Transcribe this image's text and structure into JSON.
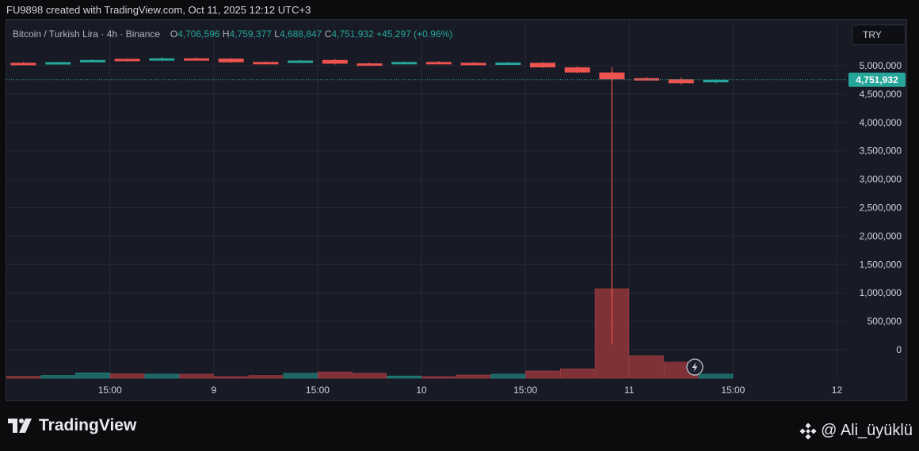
{
  "header": {
    "attribution": "FU9898 created with TradingView.com, Oct 11, 2025 12:12 UTC+3"
  },
  "legend": {
    "symbol": "Bitcoin / Turkish Lira · 4h · Binance",
    "o_label": "O",
    "o_value": "4,706,596",
    "h_label": "H",
    "h_value": "4,759,377",
    "l_label": "L",
    "l_value": "4,688,847",
    "c_label": "C",
    "c_value": "4,751,932",
    "change": "+45,297 (+0.96%)"
  },
  "currency_button": "TRY",
  "footer": {
    "logo_text": "TradingView",
    "credit": "@ Ali_üyüklü"
  },
  "colors": {
    "up": "#26a69a",
    "down": "#ef5350",
    "background": "#181a25",
    "grid": "#262834",
    "axis_text": "#d1d4dc"
  },
  "chart_data": {
    "type": "candlestick",
    "symbol": "Bitcoin / Turkish Lira",
    "interval": "4h",
    "exchange": "Binance",
    "currency": "TRY",
    "last_price": 4751932,
    "last_price_label": "4,751,932",
    "y_ticks": [
      {
        "value": 5000000,
        "label": "5,000,000"
      },
      {
        "value": 4500000,
        "label": "4,500,000"
      },
      {
        "value": 4000000,
        "label": "4,000,000"
      },
      {
        "value": 3500000,
        "label": "3,500,000"
      },
      {
        "value": 3000000,
        "label": "3,000,000"
      },
      {
        "value": 2500000,
        "label": "2,500,000"
      },
      {
        "value": 2000000,
        "label": "2,000,000"
      },
      {
        "value": 1500000,
        "label": "1,500,000"
      },
      {
        "value": 1000000,
        "label": "1,000,000"
      },
      {
        "value": 500000,
        "label": "500,000"
      },
      {
        "value": 0,
        "label": "0"
      }
    ],
    "x_ticks": [
      {
        "index": 2.5,
        "label": "15:00"
      },
      {
        "index": 5.5,
        "label": "9"
      },
      {
        "index": 8.5,
        "label": "15:00"
      },
      {
        "index": 11.5,
        "label": "10"
      },
      {
        "index": 14.5,
        "label": "15:00"
      },
      {
        "index": 17.5,
        "label": "11"
      },
      {
        "index": 20.5,
        "label": "15:00"
      },
      {
        "index": 23.5,
        "label": "12"
      }
    ],
    "candles": [
      {
        "o": 5050000,
        "h": 5065000,
        "l": 5040000,
        "c": 5045000
      },
      {
        "o": 5055000,
        "h": 5070000,
        "l": 5050000,
        "c": 5062000
      },
      {
        "o": 5065000,
        "h": 5110000,
        "l": 5060000,
        "c": 5100000
      },
      {
        "o": 5120000,
        "h": 5130000,
        "l": 5080000,
        "c": 5090000
      },
      {
        "o": 5100000,
        "h": 5150000,
        "l": 5090000,
        "c": 5130000
      },
      {
        "o": 5130000,
        "h": 5145000,
        "l": 5115000,
        "c": 5120000
      },
      {
        "o": 5125000,
        "h": 5130000,
        "l": 5050000,
        "c": 5060000
      },
      {
        "o": 5065000,
        "h": 5075000,
        "l": 5055000,
        "c": 5060000
      },
      {
        "o": 5065000,
        "h": 5100000,
        "l": 5060000,
        "c": 5090000
      },
      {
        "o": 5100000,
        "h": 5115000,
        "l": 5020000,
        "c": 5035000
      },
      {
        "o": 5040000,
        "h": 5055000,
        "l": 5000000,
        "c": 5030000
      },
      {
        "o": 5040000,
        "h": 5075000,
        "l": 5035000,
        "c": 5065000
      },
      {
        "o": 5065000,
        "h": 5080000,
        "l": 5035000,
        "c": 5045000
      },
      {
        "o": 5050000,
        "h": 5065000,
        "l": 5020000,
        "c": 5035000
      },
      {
        "o": 5045000,
        "h": 5065000,
        "l": 5040000,
        "c": 5055000
      },
      {
        "o": 5050000,
        "h": 5060000,
        "l": 4960000,
        "c": 4970000
      },
      {
        "o": 4970000,
        "h": 4990000,
        "l": 4870000,
        "c": 4880000
      },
      {
        "o": 4880000,
        "h": 4970000,
        "l": 95000,
        "c": 4760000
      },
      {
        "o": 4780000,
        "h": 4800000,
        "l": 4740000,
        "c": 4750000
      },
      {
        "o": 4760000,
        "h": 4790000,
        "l": 4670000,
        "c": 4690000
      },
      {
        "o": 4706596,
        "h": 4759377,
        "l": 4688847,
        "c": 4751932
      }
    ],
    "volume_bars": [
      {
        "value": 0.02,
        "dir": "down"
      },
      {
        "value": 0.03,
        "dir": "up"
      },
      {
        "value": 0.06,
        "dir": "up"
      },
      {
        "value": 0.05,
        "dir": "down"
      },
      {
        "value": 0.045,
        "dir": "up"
      },
      {
        "value": 0.045,
        "dir": "down"
      },
      {
        "value": 0.015,
        "dir": "down"
      },
      {
        "value": 0.03,
        "dir": "down"
      },
      {
        "value": 0.055,
        "dir": "up"
      },
      {
        "value": 0.07,
        "dir": "down"
      },
      {
        "value": 0.055,
        "dir": "down"
      },
      {
        "value": 0.025,
        "dir": "up"
      },
      {
        "value": 0.015,
        "dir": "down"
      },
      {
        "value": 0.035,
        "dir": "down"
      },
      {
        "value": 0.045,
        "dir": "up"
      },
      {
        "value": 0.08,
        "dir": "down"
      },
      {
        "value": 0.105,
        "dir": "down"
      },
      {
        "value": 1.0,
        "dir": "down"
      },
      {
        "value": 0.25,
        "dir": "down"
      },
      {
        "value": 0.18,
        "dir": "down"
      },
      {
        "value": 0.045,
        "dir": "up"
      }
    ],
    "grid": true,
    "price_scale": "right",
    "legend_placement": "top-left"
  }
}
